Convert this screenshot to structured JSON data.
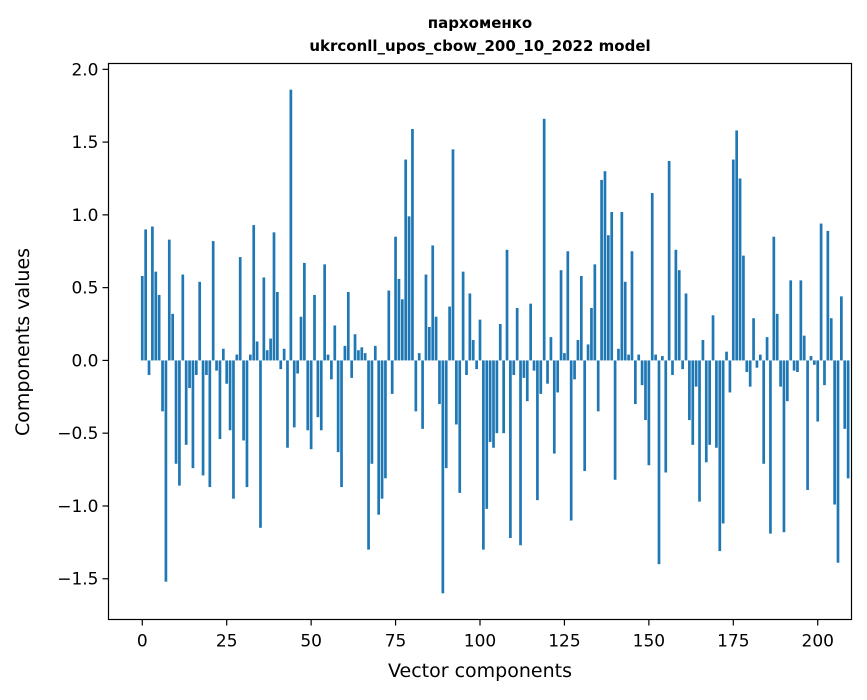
{
  "chart_data": {
    "type": "bar",
    "title_line1": "пархоменко",
    "title_line2": "ukrconll_upos_cbow_200_10_2022 model",
    "xlabel": "Vector components",
    "ylabel": "Components values",
    "xlim": [
      -10,
      210
    ],
    "ylim": [
      -1.78,
      2.04
    ],
    "x_ticks": [
      0,
      25,
      50,
      75,
      100,
      125,
      150,
      175,
      200
    ],
    "x_tick_labels": [
      "0",
      "25",
      "50",
      "75",
      "100",
      "125",
      "150",
      "175",
      "200"
    ],
    "y_ticks": [
      -1.5,
      -1.0,
      -0.5,
      0.0,
      0.5,
      1.0,
      1.5,
      2.0
    ],
    "y_tick_labels": [
      "−1.5",
      "−1.0",
      "−0.5",
      "0.0",
      "0.5",
      "1.0",
      "1.5",
      "2.0"
    ],
    "bar_color": "#1f77b4",
    "grid": false,
    "values": [
      0.58,
      0.9,
      -0.1,
      0.92,
      0.61,
      0.45,
      -0.35,
      -1.52,
      0.83,
      0.32,
      -0.71,
      -0.86,
      0.59,
      -0.58,
      -0.19,
      -0.74,
      -0.1,
      0.54,
      -0.79,
      -0.1,
      -0.87,
      0.82,
      -0.07,
      -0.54,
      0.08,
      -0.16,
      -0.48,
      -0.95,
      0.04,
      0.71,
      -0.55,
      -0.87,
      0.04,
      0.93,
      0.13,
      -1.15,
      0.57,
      0.07,
      0.15,
      0.88,
      0.47,
      -0.06,
      0.08,
      -0.6,
      1.86,
      -0.46,
      -0.09,
      0.3,
      0.67,
      -0.48,
      -0.61,
      0.45,
      -0.39,
      -0.48,
      0.66,
      0.04,
      -0.13,
      0.24,
      -0.63,
      -0.87,
      0.1,
      0.47,
      -0.12,
      0.18,
      0.07,
      0.09,
      0.05,
      -1.3,
      -0.71,
      0.1,
      -1.06,
      -0.95,
      -0.81,
      0.48,
      -0.23,
      0.85,
      0.56,
      0.42,
      1.38,
      0.99,
      1.59,
      -0.35,
      0.05,
      -0.47,
      0.59,
      0.23,
      0.79,
      0.3,
      -0.3,
      -1.6,
      -0.74,
      0.37,
      1.45,
      -0.44,
      -0.91,
      0.61,
      -0.1,
      0.46,
      0.14,
      -0.06,
      0.28,
      -1.3,
      -1.02,
      -0.56,
      -0.6,
      -0.5,
      0.25,
      -0.5,
      0.76,
      -1.22,
      -0.1,
      0.36,
      -1.27,
      -0.12,
      -0.28,
      0.39,
      -0.07,
      -0.96,
      -0.23,
      1.66,
      -0.16,
      0.16,
      -0.64,
      -0.22,
      0.62,
      0.05,
      0.75,
      -1.1,
      -0.13,
      0.14,
      0.58,
      -0.76,
      0.11,
      0.36,
      0.66,
      -0.35,
      1.24,
      1.3,
      0.86,
      1.02,
      -0.82,
      0.08,
      1.02,
      0.54,
      0.04,
      0.75,
      -0.3,
      0.04,
      -0.17,
      -0.41,
      -0.72,
      1.15,
      0.04,
      -1.4,
      0.03,
      -0.77,
      1.37,
      -0.1,
      0.76,
      0.62,
      -0.06,
      0.46,
      -0.41,
      -0.58,
      -0.18,
      -0.97,
      0.14,
      -0.7,
      -0.58,
      0.31,
      -0.6,
      -1.31,
      -1.12,
      0.06,
      -0.22,
      1.38,
      1.58,
      1.25,
      0.72,
      -0.08,
      -0.18,
      0.29,
      -0.05,
      0.04,
      -0.71,
      0.16,
      -1.19,
      0.85,
      0.32,
      -0.18,
      -1.18,
      -0.28,
      0.55,
      -0.07,
      -0.08,
      0.55,
      0.17,
      -0.89,
      0.03,
      -0.03,
      -0.42,
      0.94,
      -0.17,
      0.89,
      0.29,
      -0.99,
      -1.39,
      0.44,
      -0.47,
      -0.81
    ]
  }
}
